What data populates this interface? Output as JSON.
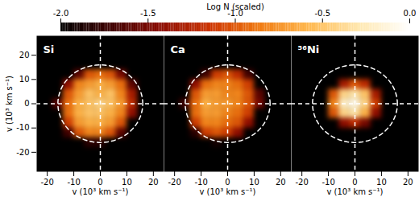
{
  "chart_data": {
    "type": "heatmap",
    "x_label": "v (10³ km s⁻¹)",
    "y_label": "v (10³ km s⁻¹)",
    "xlim": [
      -24,
      24
    ],
    "ylim": [
      -28,
      28
    ],
    "xticks": [
      -20,
      -10,
      0,
      10,
      20
    ],
    "yticks": [
      -20,
      -10,
      0,
      10,
      20
    ],
    "reference_circle_radius": 16,
    "reference_lines": {
      "x": 0,
      "y": 0
    },
    "colorbar": {
      "label": "Log N (scaled)",
      "range": [
        -2,
        0
      ],
      "ticks": [
        {
          "value": -2,
          "label": "-2.0"
        },
        -1.5,
        {
          "value": -1,
          "label": "-1.0"
        },
        -0.5,
        {
          "value": 0,
          "label": "0.0"
        }
      ]
    },
    "cell_x": [
      -16,
      -12,
      -8,
      -4,
      0,
      4,
      8,
      12,
      16
    ],
    "cell_y": [
      16,
      12,
      8,
      4,
      0,
      -4,
      -8,
      -12,
      -16
    ],
    "panels": [
      {
        "title": "Si",
        "values": [
          [
            null,
            null,
            null,
            null,
            null,
            null,
            null,
            null,
            null
          ],
          [
            null,
            null,
            -1.6,
            -1.0,
            -0.9,
            -1.0,
            -1.5,
            null,
            null
          ],
          [
            null,
            -1.4,
            -0.8,
            -0.7,
            -0.6,
            -0.7,
            -0.9,
            -1.6,
            null
          ],
          [
            null,
            -1.0,
            -0.7,
            -0.5,
            -0.6,
            -0.5,
            -0.8,
            -1.3,
            null
          ],
          [
            -1.6,
            -0.9,
            -0.6,
            -0.5,
            -0.4,
            -0.5,
            -0.7,
            -1.2,
            null
          ],
          [
            null,
            -0.9,
            -0.6,
            -0.5,
            -0.5,
            -0.6,
            -0.8,
            -1.4,
            null
          ],
          [
            null,
            -1.1,
            -0.7,
            -0.6,
            -0.6,
            -0.7,
            -1.0,
            null,
            null
          ],
          [
            null,
            -1.7,
            -1.0,
            -0.8,
            -0.8,
            -1.0,
            -1.6,
            null,
            null
          ],
          [
            null,
            null,
            null,
            -1.8,
            -1.8,
            null,
            null,
            null,
            null
          ]
        ]
      },
      {
        "title": "Ca",
        "values": [
          [
            null,
            null,
            null,
            null,
            null,
            null,
            null,
            null,
            null
          ],
          [
            null,
            null,
            -1.7,
            -1.1,
            -1.0,
            -1.2,
            -1.7,
            null,
            null
          ],
          [
            null,
            -1.4,
            -0.9,
            -0.8,
            -0.8,
            -0.9,
            -1.1,
            null,
            null
          ],
          [
            null,
            -1.0,
            -0.7,
            -0.7,
            -0.8,
            -0.8,
            -1.0,
            -1.6,
            null
          ],
          [
            -1.7,
            -0.9,
            -0.6,
            -0.7,
            -0.7,
            -0.8,
            -1.0,
            -1.5,
            null
          ],
          [
            null,
            -0.9,
            -0.7,
            -0.7,
            -0.8,
            -0.9,
            -1.1,
            null,
            null
          ],
          [
            null,
            -1.1,
            -0.8,
            -0.8,
            -0.9,
            -1.0,
            -1.4,
            null,
            null
          ],
          [
            null,
            -1.8,
            -1.1,
            -1.0,
            -1.1,
            -1.4,
            null,
            null,
            null
          ],
          [
            null,
            null,
            null,
            -1.9,
            null,
            null,
            null,
            null,
            null
          ]
        ]
      },
      {
        "title": "⁵⁶Ni",
        "values": [
          [
            null,
            null,
            null,
            null,
            null,
            null,
            null,
            null,
            null
          ],
          [
            null,
            null,
            null,
            null,
            null,
            null,
            null,
            null,
            null
          ],
          [
            null,
            null,
            null,
            -1.3,
            -1.0,
            -1.2,
            null,
            null,
            null
          ],
          [
            null,
            null,
            -1.0,
            -0.4,
            -0.3,
            -0.5,
            -1.3,
            null,
            null
          ],
          [
            null,
            null,
            -0.8,
            -0.2,
            -0.1,
            -0.4,
            -1.1,
            null,
            null
          ],
          [
            null,
            null,
            -1.0,
            -0.4,
            -0.3,
            -0.6,
            -1.4,
            null,
            null
          ],
          [
            null,
            null,
            null,
            -1.4,
            -1.2,
            -1.5,
            null,
            null,
            null
          ],
          [
            null,
            null,
            null,
            null,
            null,
            null,
            null,
            null,
            null
          ],
          [
            null,
            null,
            null,
            null,
            null,
            null,
            null,
            null,
            null
          ]
        ]
      }
    ]
  }
}
